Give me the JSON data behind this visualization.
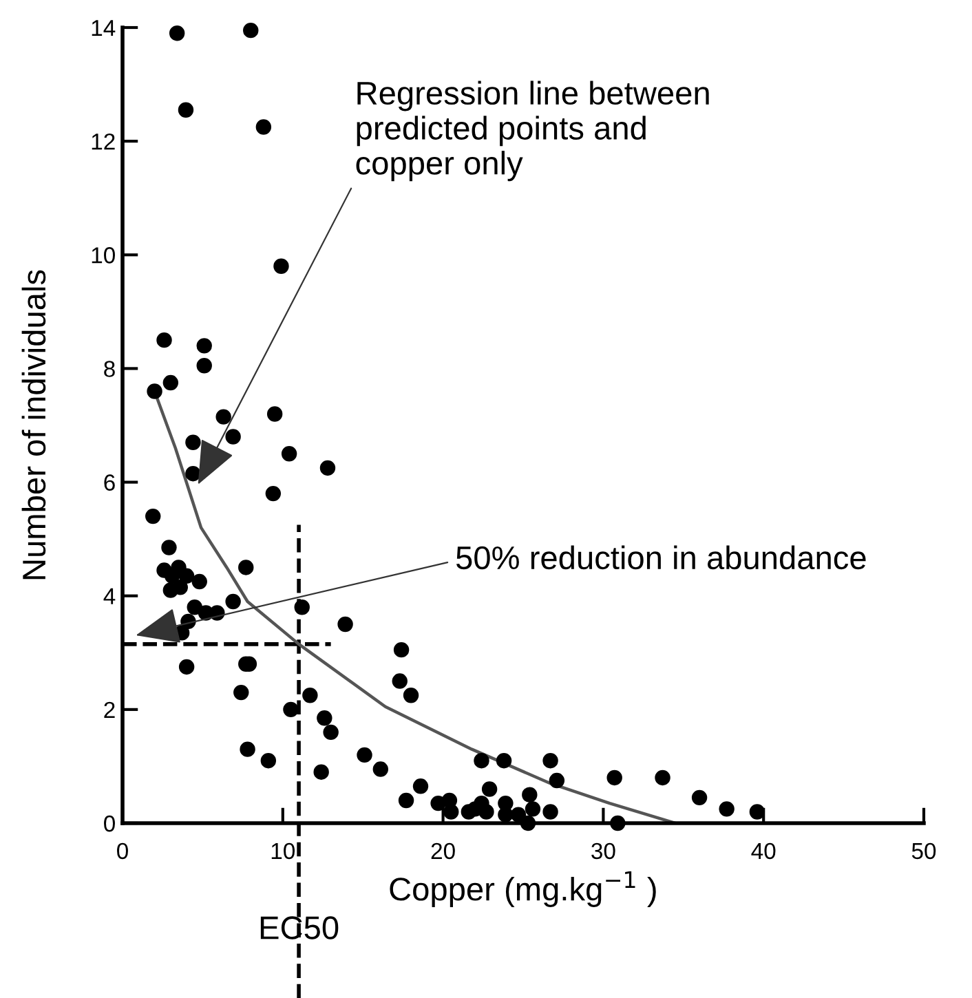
{
  "chart_data": {
    "type": "scatter",
    "xlabel": "Copper (mg.kg$^{−1}$ )",
    "ylabel": "Number of individuals",
    "xlim": [
      0,
      50
    ],
    "ylim": [
      0,
      14
    ],
    "xticks": [
      0,
      10,
      20,
      30,
      40,
      50
    ],
    "yticks": [
      0,
      2,
      4,
      6,
      8,
      10,
      12,
      14
    ],
    "grid": false,
    "series": [
      {
        "color": "#000000",
        "marker": "circle",
        "x": [
          3.4,
          8.0,
          3.95,
          8.8,
          9.9,
          2.6,
          5.1,
          5.1,
          2.0,
          3.0,
          6.3,
          9.5,
          4.4,
          6.9,
          4.4,
          12.8,
          10.4,
          9.4,
          1.9,
          2.9,
          2.6,
          3.5,
          3.1,
          4.0,
          4.8,
          3.0,
          3.6,
          4.5,
          5.2,
          5.9,
          4.1,
          3.7,
          7.7,
          6.9,
          11.2,
          13.9,
          4.0,
          7.7,
          7.9,
          7.4,
          11.7,
          10.5,
          12.6,
          13.0,
          7.8,
          9.1,
          12.4,
          15.1,
          16.1,
          17.4,
          17.3,
          18.0,
          18.6,
          17.7,
          19.7,
          20.4,
          20.5,
          21.6,
          22.0,
          22.4,
          22.7,
          22.4,
          23.8,
          22.9,
          23.9,
          23.9,
          24.7,
          25.4,
          25.6,
          25.3,
          26.7,
          26.7,
          27.1,
          30.7,
          30.9,
          33.7,
          36.0,
          37.7,
          39.6
        ],
        "values": [
          13.9,
          13.95,
          12.55,
          12.25,
          9.8,
          8.5,
          8.4,
          8.05,
          7.6,
          7.75,
          7.15,
          7.2,
          6.7,
          6.8,
          6.15,
          6.25,
          6.5,
          5.8,
          5.4,
          4.85,
          4.45,
          4.5,
          4.35,
          4.35,
          4.25,
          4.1,
          4.15,
          3.8,
          3.7,
          3.7,
          3.55,
          3.35,
          4.5,
          3.9,
          3.8,
          3.5,
          2.75,
          2.8,
          2.8,
          2.3,
          2.25,
          2.0,
          1.85,
          1.6,
          1.3,
          1.1,
          0.9,
          1.2,
          0.95,
          3.05,
          2.5,
          2.25,
          0.65,
          0.4,
          0.35,
          0.4,
          0.2,
          0.2,
          0.25,
          0.35,
          0.2,
          1.1,
          1.1,
          0.6,
          0.35,
          0.15,
          0.15,
          0.5,
          0.25,
          0.0,
          0.2,
          1.1,
          0.75,
          0.8,
          0.0,
          0.8,
          0.45,
          0.25,
          0.2
        ]
      },
      {
        "type": "line",
        "color": "#555555",
        "marker": "none",
        "line_style": "solid",
        "x": [
          2.0,
          3.3,
          4.9,
          6.5,
          7.8,
          11.0,
          16.4,
          21.8,
          26.7,
          30.4,
          34.5
        ],
        "values": [
          7.6,
          6.6,
          5.2,
          4.5,
          3.9,
          3.15,
          2.05,
          1.3,
          0.7,
          0.35,
          0.0
        ]
      }
    ],
    "ref_lines": [
      {
        "axis": "x",
        "value": 11.0,
        "label": "EC50",
        "color": "#000000",
        "line_style": "dashed"
      },
      {
        "axis": "y",
        "value": 3.15,
        "color": "#000000",
        "line_style": "dashed"
      }
    ],
    "annotations": [
      {
        "text": "Regression line between\npredicted points and\ncopper only",
        "x": 4.6,
        "y": 5.9
      },
      "50% reduction in abundance"
    ]
  }
}
